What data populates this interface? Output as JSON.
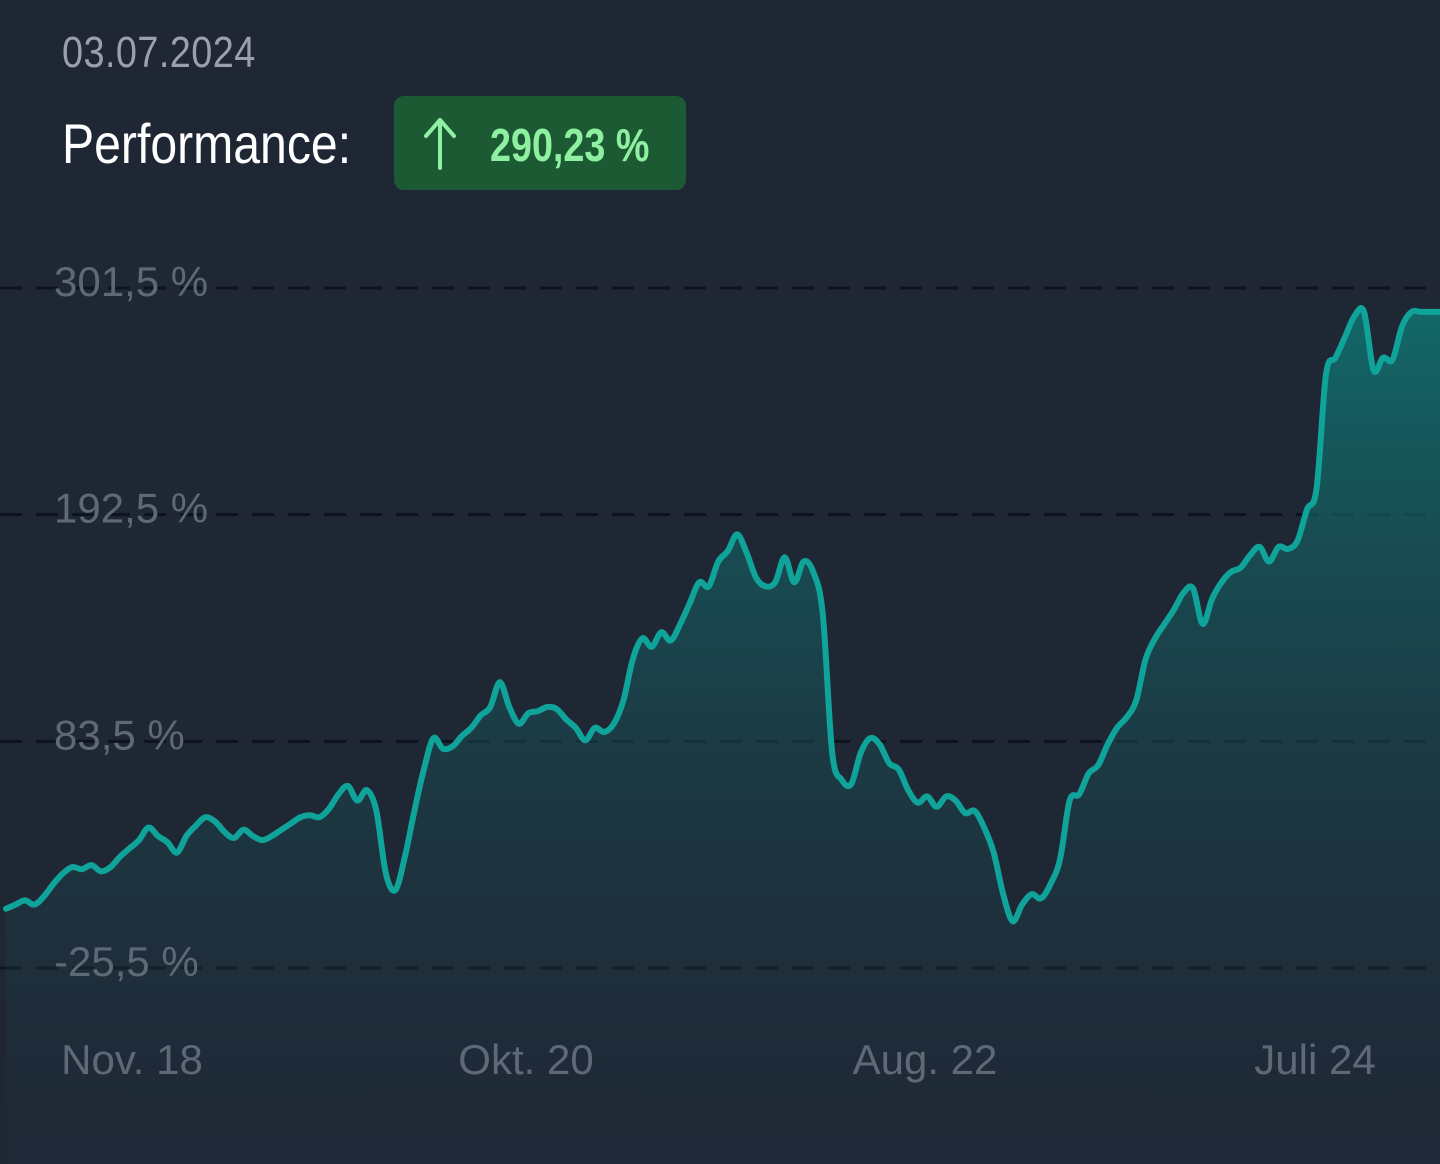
{
  "header": {
    "date": "03.07.2024",
    "performance_label": "Performance:",
    "performance_value": "290,23 %",
    "performance_direction": "up"
  },
  "colors": {
    "background": "#1f2735",
    "line": "#0fa39a",
    "badge_bg": "#1c5a34",
    "badge_text": "#8ef0a0",
    "axis_text": "#5f6877",
    "grid": "#0e141d"
  },
  "chart_data": {
    "type": "area",
    "title": "",
    "xlabel": "",
    "ylabel": "",
    "y_tick_labels": [
      "301,5 %",
      "192,5 %",
      "83,5 %",
      "-25,5 %"
    ],
    "y_ticks": [
      301.5,
      192.5,
      83.5,
      -25.5
    ],
    "x_tick_labels": [
      "Nov. 18",
      "Okt. 20",
      "Aug. 22",
      "Juli 24"
    ],
    "ylim": [
      -25.5,
      301.5
    ],
    "grid": "horizontal dashed",
    "series": [
      {
        "values": [
          3,
          5,
          7,
          5,
          9,
          15,
          20,
          23,
          22,
          24,
          21,
          23,
          28,
          32,
          36,
          42,
          38,
          35,
          30,
          38,
          43,
          47,
          45,
          40,
          37,
          41,
          38,
          36,
          38,
          41,
          44,
          47,
          48,
          47,
          51,
          58,
          62,
          55,
          60,
          50,
          20,
          12,
          28,
          50,
          70,
          85,
          80,
          81,
          86,
          90,
          96,
          100,
          112,
          100,
          92,
          97,
          98,
          100,
          99,
          94,
          90,
          84,
          90,
          88,
          92,
          103,
          123,
          133,
          129,
          136,
          132,
          140,
          150,
          160,
          158,
          170,
          175,
          183,
          174,
          162,
          158,
          160,
          172,
          160,
          170,
          165,
          145,
          78,
          65,
          63,
          78,
          85,
          82,
          73,
          70,
          60,
          54,
          57,
          52,
          57,
          55,
          49,
          50,
          42,
          30,
          10,
          -3,
          5,
          10,
          8,
          15,
          27,
          55,
          58,
          68,
          72,
          82,
          90,
          95,
          103,
          123,
          133,
          140,
          147,
          155,
          157,
          140,
          152,
          160,
          165,
          167,
          173,
          177,
          170,
          177,
          176,
          180,
          195,
          205,
          260,
          268,
          278,
          288,
          290,
          262,
          268,
          267,
          283,
          290,
          290,
          290,
          290
        ]
      }
    ]
  }
}
